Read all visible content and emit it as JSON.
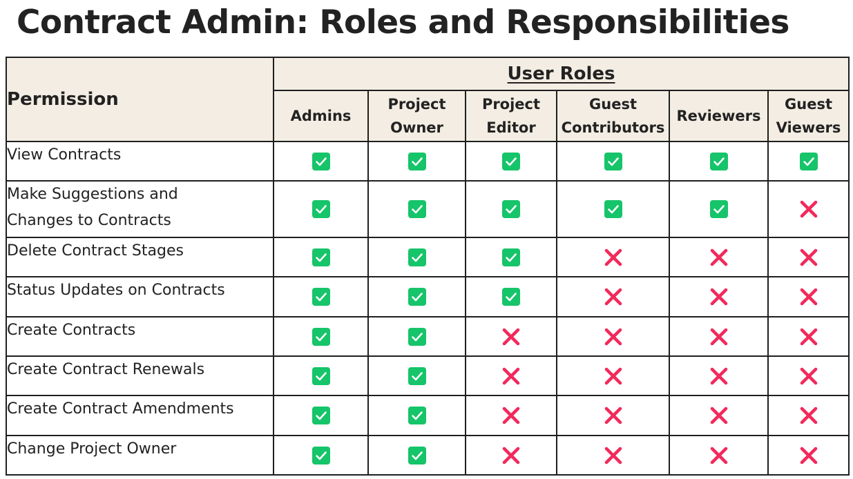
{
  "title": "Contract Admin: Roles and Responsibilities",
  "colors": {
    "check": "#16c46a",
    "cross": "#f2295b",
    "header_bg": "#f3ede3"
  },
  "table": {
    "permission_header": "Permission",
    "group_header": "User Roles",
    "roles": [
      {
        "line1": "Admins",
        "line2": ""
      },
      {
        "line1": "Project",
        "line2": "Owner"
      },
      {
        "line1": "Project",
        "line2": "Editor"
      },
      {
        "line1": "Guest",
        "line2": "Contributors"
      },
      {
        "line1": "Reviewers",
        "line2": ""
      },
      {
        "line1": "Guest",
        "line2": "Viewers"
      }
    ],
    "rows": [
      {
        "permission": "View Contracts",
        "allowed": [
          true,
          true,
          true,
          true,
          true,
          true
        ]
      },
      {
        "permission_line1": "Make Suggestions and",
        "permission_line2": "Changes to Contracts",
        "allowed": [
          true,
          true,
          true,
          true,
          true,
          false
        ]
      },
      {
        "permission": "Delete Contract Stages",
        "allowed": [
          true,
          true,
          true,
          false,
          false,
          false
        ]
      },
      {
        "permission": "Status Updates on Contracts",
        "allowed": [
          true,
          true,
          true,
          false,
          false,
          false
        ]
      },
      {
        "permission": "Create Contracts",
        "allowed": [
          true,
          true,
          false,
          false,
          false,
          false
        ]
      },
      {
        "permission": "Create Contract Renewals",
        "allowed": [
          true,
          true,
          false,
          false,
          false,
          false
        ]
      },
      {
        "permission": "Create Contract Amendments",
        "allowed": [
          true,
          true,
          false,
          false,
          false,
          false
        ]
      },
      {
        "permission": "Change Project Owner",
        "allowed": [
          true,
          true,
          false,
          false,
          false,
          false
        ]
      }
    ]
  }
}
